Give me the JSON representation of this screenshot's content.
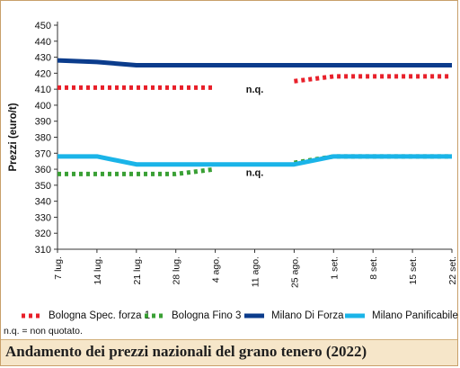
{
  "chart_data": {
    "type": "line",
    "ylabel": "Prezzi (euro/t)",
    "xlabel": "",
    "ylim": [
      310,
      450
    ],
    "yticks": [
      310,
      320,
      330,
      340,
      350,
      360,
      370,
      380,
      390,
      400,
      410,
      420,
      430,
      440,
      450
    ],
    "categories": [
      "7 lug.",
      "14 lug.",
      "21 lug.",
      "28 lug.",
      "4 ago.",
      "11 ago.",
      "25 ago.",
      "1 set.",
      "8 set.",
      "15 set.",
      "22 set."
    ],
    "grid": false,
    "legend_position": "bottom",
    "series": [
      {
        "name": "Bologna Spec. forza 1",
        "color": "#e8202a",
        "style": "dotted",
        "segments": [
          [
            [
              0,
              411
            ],
            [
              1,
              411
            ],
            [
              2,
              411
            ],
            [
              3,
              411
            ],
            [
              4,
              411
            ]
          ],
          [
            [
              6,
              415
            ],
            [
              7,
              418
            ],
            [
              8,
              418
            ],
            [
              9,
              418
            ],
            [
              10,
              418
            ]
          ]
        ]
      },
      {
        "name": "Bologna Fino 3",
        "color": "#3aa035",
        "style": "dotted",
        "segments": [
          [
            [
              0,
              357
            ],
            [
              1,
              357
            ],
            [
              2,
              357
            ],
            [
              3,
              357
            ],
            [
              4,
              360
            ]
          ],
          [
            [
              6,
              364
            ],
            [
              7,
              368
            ],
            [
              8,
              368
            ],
            [
              9,
              368
            ],
            [
              10,
              368
            ]
          ]
        ]
      },
      {
        "name": "Milano Di Forza",
        "color": "#0b3c8c",
        "style": "solid",
        "segments": [
          [
            [
              0,
              428
            ],
            [
              1,
              427
            ],
            [
              2,
              425
            ],
            [
              3,
              425
            ],
            [
              4,
              425
            ],
            [
              5,
              425
            ],
            [
              6,
              425
            ],
            [
              7,
              425
            ],
            [
              8,
              425
            ],
            [
              9,
              425
            ],
            [
              10,
              425
            ]
          ]
        ]
      },
      {
        "name": "Milano Panificabile",
        "color": "#1ab4e8",
        "style": "solid",
        "segments": [
          [
            [
              0,
              368
            ],
            [
              1,
              368
            ],
            [
              2,
              363
            ],
            [
              3,
              363
            ],
            [
              4,
              363
            ],
            [
              5,
              363
            ],
            [
              6,
              363
            ],
            [
              7,
              368
            ],
            [
              8,
              368
            ],
            [
              9,
              368
            ],
            [
              10,
              368
            ]
          ]
        ]
      }
    ],
    "annotations": [
      {
        "text": "n.q.",
        "x": 5,
        "y": 410
      },
      {
        "text": "n.q.",
        "x": 5,
        "y": 358
      }
    ]
  },
  "footnote": "n.q. = non quotato.",
  "title": "Andamento dei prezzi nazionali del grano tenero (2022)"
}
